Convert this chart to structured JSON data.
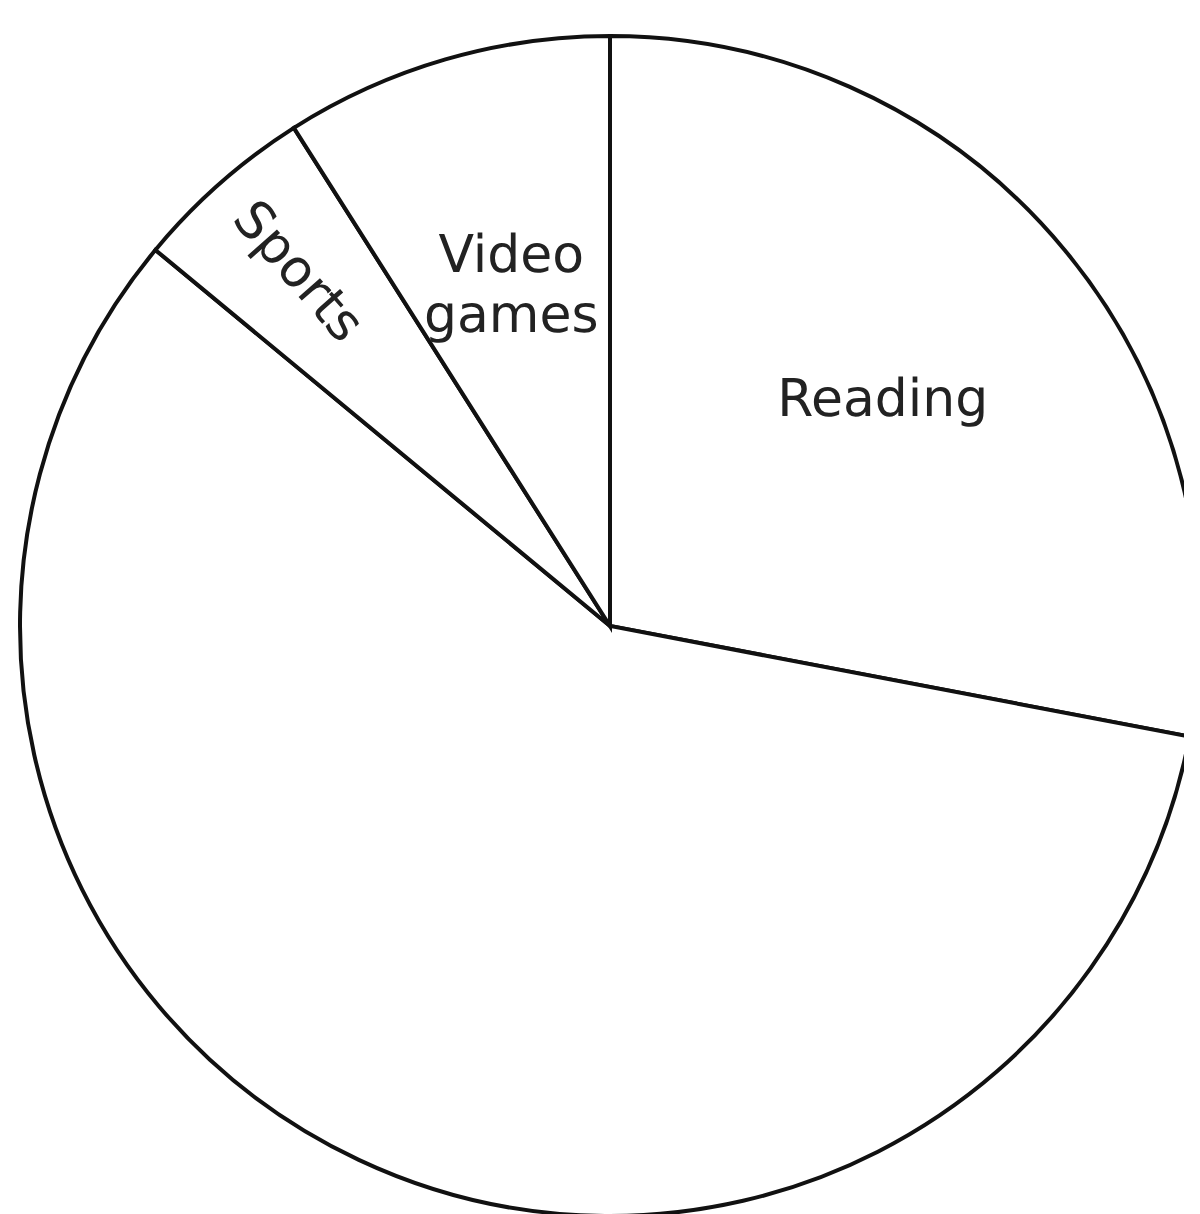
{
  "chart_data": {
    "type": "pie",
    "categories": [
      "Reading",
      null,
      "Sports",
      "Video games"
    ],
    "values": [
      28,
      58,
      5,
      9
    ],
    "colors": [
      "#ffffff",
      "#ffffff",
      "#ffffff",
      "#ffffff"
    ],
    "legend": false
  }
}
